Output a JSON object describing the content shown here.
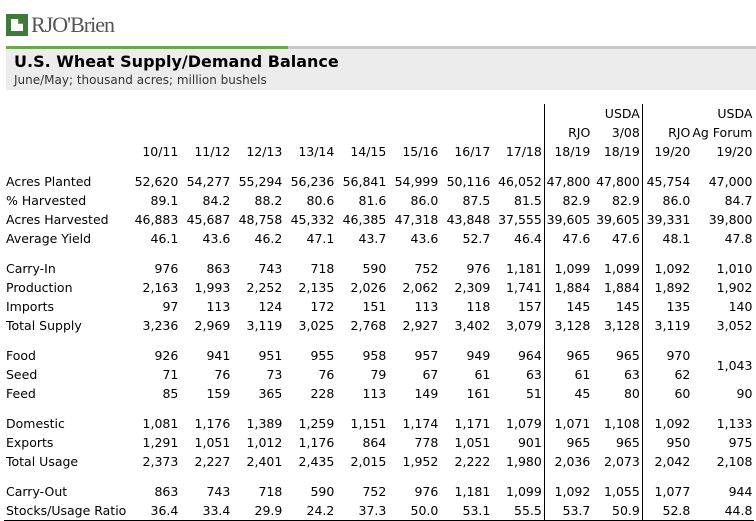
{
  "logo": "RJO'Brien",
  "header": {
    "title": "U.S. Wheat Supply/Demand Balance",
    "subtitle": "June/May; thousand acres; million bushels"
  },
  "table": {
    "columns": [
      [
        "10/11"
      ],
      [
        "11/12"
      ],
      [
        "12/13"
      ],
      [
        "13/14"
      ],
      [
        "14/15"
      ],
      [
        "15/16"
      ],
      [
        "16/17"
      ],
      [
        "17/18"
      ],
      [
        "RJO",
        "18/19"
      ],
      [
        "USDA",
        "3/08",
        "18/19"
      ],
      [
        "RJO",
        "19/20"
      ],
      [
        "USDA",
        "Ag Forum",
        "19/20"
      ]
    ],
    "groups": [
      {
        "rows": [
          {
            "label": "Acres Planted",
            "cells": [
              "52,620",
              "54,277",
              "55,294",
              "56,236",
              "56,841",
              "54,999",
              "50,116",
              "46,052",
              "47,800",
              "47,800",
              "45,754",
              "47,000"
            ]
          },
          {
            "label": "% Harvested",
            "cells": [
              "89.1",
              "84.2",
              "88.2",
              "80.6",
              "81.6",
              "86.0",
              "87.5",
              "81.5",
              "82.9",
              "82.9",
              "86.0",
              "84.7"
            ]
          },
          {
            "label": "Acres Harvested",
            "cells": [
              "46,883",
              "45,687",
              "48,758",
              "45,332",
              "46,385",
              "47,318",
              "43,848",
              "37,555",
              "39,605",
              "39,605",
              "39,331",
              "39,800"
            ]
          },
          {
            "label": "Average Yield",
            "cells": [
              "46.1",
              "43.6",
              "46.2",
              "47.1",
              "43.7",
              "43.6",
              "52.7",
              "46.4",
              "47.6",
              "47.6",
              "48.1",
              "47.8"
            ]
          }
        ]
      },
      {
        "rows": [
          {
            "label": "Carry-In",
            "cells": [
              "976",
              "863",
              "743",
              "718",
              "590",
              "752",
              "976",
              "1,181",
              "1,099",
              "1,099",
              "1,092",
              "1,010"
            ]
          },
          {
            "label": "Production",
            "cells": [
              "2,163",
              "1,993",
              "2,252",
              "2,135",
              "2,026",
              "2,062",
              "2,309",
              "1,741",
              "1,884",
              "1,884",
              "1,892",
              "1,902"
            ]
          },
          {
            "label": "Imports",
            "cells": [
              "97",
              "113",
              "124",
              "172",
              "151",
              "113",
              "118",
              "157",
              "145",
              "145",
              "135",
              "140"
            ]
          },
          {
            "label": "Total Supply",
            "cells": [
              "3,236",
              "2,969",
              "3,119",
              "3,025",
              "2,768",
              "2,927",
              "3,402",
              "3,079",
              "3,128",
              "3,128",
              "3,119",
              "3,052"
            ]
          }
        ]
      },
      {
        "merged_cell": "1,043",
        "rows": [
          {
            "label": "Food",
            "cells": [
              "926",
              "941",
              "951",
              "955",
              "958",
              "957",
              "949",
              "964",
              "965",
              "965",
              "970"
            ]
          },
          {
            "label": "Seed",
            "cells": [
              "71",
              "76",
              "73",
              "76",
              "79",
              "67",
              "61",
              "63",
              "61",
              "63",
              "62"
            ]
          },
          {
            "label": "Feed",
            "cells": [
              "85",
              "159",
              "365",
              "228",
              "113",
              "149",
              "161",
              "51",
              "45",
              "80",
              "60",
              "90"
            ]
          }
        ]
      },
      {
        "rows": [
          {
            "label": "Domestic",
            "cells": [
              "1,081",
              "1,176",
              "1,389",
              "1,259",
              "1,151",
              "1,174",
              "1,171",
              "1,079",
              "1,071",
              "1,108",
              "1,092",
              "1,133"
            ]
          },
          {
            "label": "Exports",
            "cells": [
              "1,291",
              "1,051",
              "1,012",
              "1,176",
              "864",
              "778",
              "1,051",
              "901",
              "965",
              "965",
              "950",
              "975"
            ]
          },
          {
            "label": "Total Usage",
            "cells": [
              "2,373",
              "2,227",
              "2,401",
              "2,435",
              "2,015",
              "1,952",
              "2,222",
              "1,980",
              "2,036",
              "2,073",
              "2,042",
              "2,108"
            ]
          }
        ]
      },
      {
        "rows": [
          {
            "label": "Carry-Out",
            "cells": [
              "863",
              "743",
              "718",
              "590",
              "752",
              "976",
              "1,181",
              "1,099",
              "1,092",
              "1,055",
              "1,077",
              "944"
            ]
          },
          {
            "label": "Stocks/Usage Ratio",
            "cells": [
              "36.4",
              "33.4",
              "29.9",
              "24.2",
              "37.3",
              "50.0",
              "53.1",
              "55.5",
              "53.7",
              "50.9",
              "52.8",
              "44.8"
            ]
          }
        ]
      }
    ]
  }
}
